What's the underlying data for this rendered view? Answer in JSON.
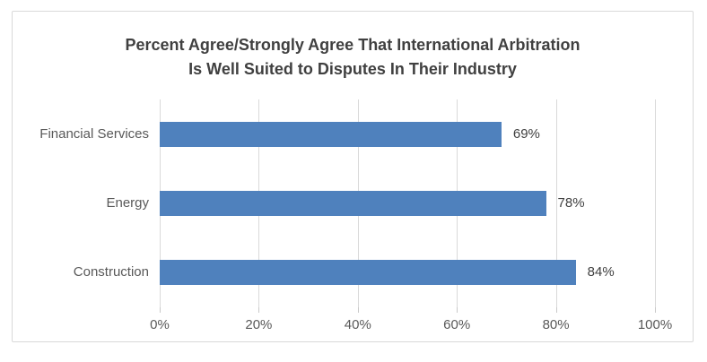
{
  "chart_data": {
    "type": "bar",
    "orientation": "horizontal",
    "title": "Percent Agree/Strongly Agree That International Arbitration Is Well Suited to Disputes In Their Industry",
    "title_lines": [
      "Percent Agree/Strongly Agree That International Arbitration",
      "Is Well Suited to Disputes In Their Industry"
    ],
    "categories": [
      "Financial Services",
      "Energy",
      "Construction"
    ],
    "values": [
      69,
      78,
      84
    ],
    "data_labels": [
      "69%",
      "78%",
      "84%"
    ],
    "x_ticks": [
      "0%",
      "20%",
      "40%",
      "60%",
      "80%",
      "100%"
    ],
    "x_tick_values": [
      0,
      20,
      40,
      60,
      80,
      100
    ],
    "xlim": [
      0,
      100
    ],
    "grid": true,
    "legend": false,
    "colors": {
      "bar": "#4f81bd",
      "gridline": "#d9d9d9",
      "tick": "#c9c9c9",
      "title_text": "#404040",
      "label_text": "#595959",
      "frame_border": "#d9d9d9",
      "background": "#ffffff"
    }
  }
}
